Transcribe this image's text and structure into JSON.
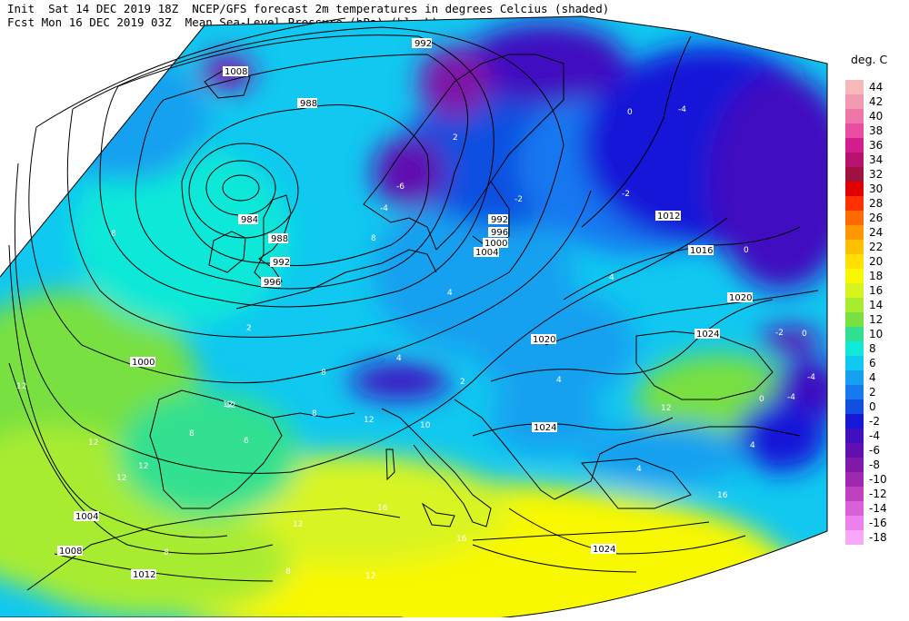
{
  "header": {
    "line1": "Init  Sat 14 DEC 2019 18Z  NCEP/GFS forecast 2m temperatures in degrees Celcius (shaded)",
    "line2": "Fcst Mon 16 DEC 2019 03Z  Mean Sea-Level Pressure (hPa) (black)."
  },
  "legend": {
    "title": "deg. C",
    "entries": [
      {
        "label": "44",
        "color": "#f8b8b8"
      },
      {
        "label": "42",
        "color": "#f49ab0"
      },
      {
        "label": "40",
        "color": "#ef74a8"
      },
      {
        "label": "38",
        "color": "#ea4ea0"
      },
      {
        "label": "36",
        "color": "#d41d8c"
      },
      {
        "label": "34",
        "color": "#b8126e"
      },
      {
        "label": "32",
        "color": "#a01040"
      },
      {
        "label": "30",
        "color": "#e00000"
      },
      {
        "label": "28",
        "color": "#ff3000"
      },
      {
        "label": "26",
        "color": "#ff6a00"
      },
      {
        "label": "24",
        "color": "#ff9800"
      },
      {
        "label": "22",
        "color": "#ffc000"
      },
      {
        "label": "20",
        "color": "#ffe000"
      },
      {
        "label": "18",
        "color": "#f8f800"
      },
      {
        "label": "16",
        "color": "#d8f420"
      },
      {
        "label": "14",
        "color": "#a8ec30"
      },
      {
        "label": "12",
        "color": "#78e040"
      },
      {
        "label": "10",
        "color": "#30e090"
      },
      {
        "label": "8",
        "color": "#10e8d8"
      },
      {
        "label": "6",
        "color": "#10c8f0"
      },
      {
        "label": "4",
        "color": "#18a0f0"
      },
      {
        "label": "2",
        "color": "#1878f0"
      },
      {
        "label": "0",
        "color": "#1050e0"
      },
      {
        "label": "-2",
        "color": "#1818d8"
      },
      {
        "label": "-4",
        "color": "#4010c0"
      },
      {
        "label": "-6",
        "color": "#6010b0"
      },
      {
        "label": "-8",
        "color": "#8018a8"
      },
      {
        "label": "-10",
        "color": "#a028b0"
      },
      {
        "label": "-12",
        "color": "#c040c0"
      },
      {
        "label": "-14",
        "color": "#d860d8"
      },
      {
        "label": "-16",
        "color": "#ec80ec"
      },
      {
        "label": "-18",
        "color": "#f8a8f8"
      }
    ]
  },
  "isobar_labels": [
    "992",
    "988",
    "984",
    "988",
    "992",
    "996",
    "992",
    "996",
    "1000",
    "1004",
    "1012",
    "1016",
    "1020",
    "1020",
    "1024",
    "1024",
    "1000",
    "1004",
    "1008",
    "1012",
    "1024",
    "1008"
  ],
  "temp_labels": [
    "12",
    "12",
    "12",
    "12",
    "8",
    "8",
    "8",
    "8",
    "8",
    "6",
    "4",
    "4",
    "4",
    "4",
    "2",
    "2",
    "0",
    "0",
    "-2",
    "-4",
    "-4",
    "-4",
    "-6",
    "-2",
    "0",
    "16",
    "12",
    "12",
    "8",
    "8",
    "4",
    "4",
    "2",
    "12",
    "16",
    "12",
    "10",
    "12",
    "12",
    "16",
    "-4",
    "0",
    "-2"
  ]
}
